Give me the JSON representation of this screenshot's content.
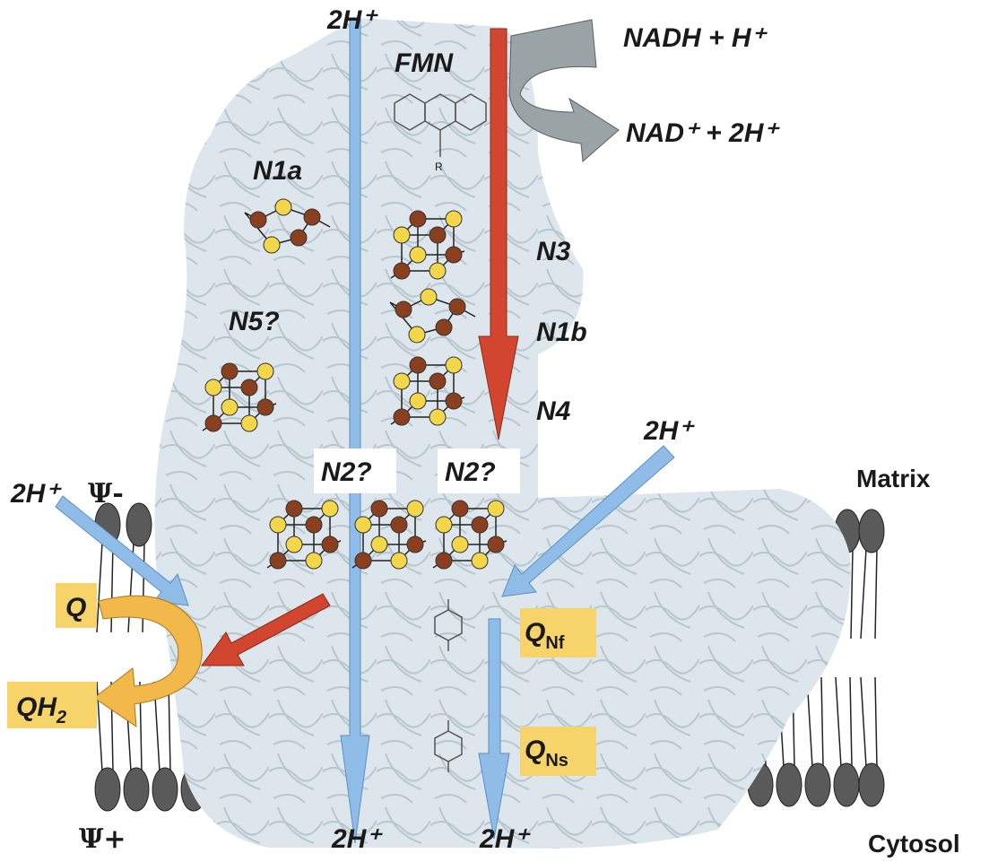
{
  "labels": {
    "proton_top": "2H⁺",
    "fmn": "FMN",
    "fmn_r": "R",
    "nadh": "NADH + H⁺",
    "nad": "NAD⁺ + 2H⁺",
    "n1a": "N1a",
    "n3": "N3",
    "n5": "N5?",
    "n1b": "N1b",
    "n4": "N4",
    "proton_right": "2H⁺",
    "n2_left": "N2?",
    "n2_right": "N2?",
    "matrix": "Matrix",
    "proton_left": "2H⁺",
    "psi_minus": "Ψ-",
    "q": "Q",
    "qh2": {
      "main": "QH",
      "sub": "2"
    },
    "qnf": {
      "main": "Q",
      "sub": "Nf"
    },
    "qns": {
      "main": "Q",
      "sub": "Ns"
    },
    "psi_plus": "Ψ+",
    "proton_bottom_left": "2H⁺",
    "proton_bottom_right": "2H⁺",
    "cytosol": "Cytosol"
  }
}
